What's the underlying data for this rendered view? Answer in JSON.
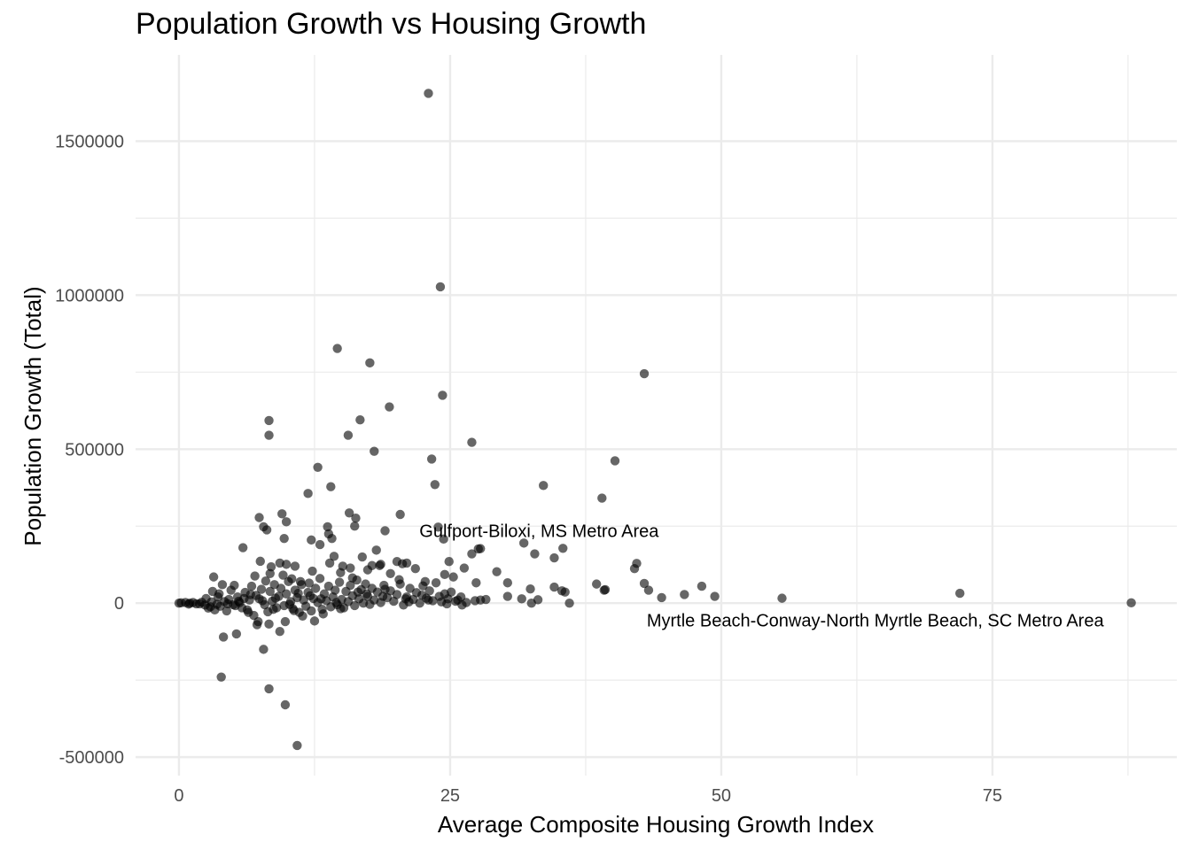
{
  "chart_data": {
    "type": "scatter",
    "title": "Population Growth vs Housing Growth",
    "xlabel": "Average Composite Housing Growth Index",
    "ylabel": "Population Growth (Total)",
    "xlim": [
      -4,
      92
    ],
    "ylim": [
      -560000,
      1780000
    ],
    "x_ticks": [
      0,
      25,
      50,
      75
    ],
    "x_tick_labels": [
      "0",
      "25",
      "50",
      "75"
    ],
    "x_minor_ticks": [
      12.5,
      37.5,
      62.5,
      87.5
    ],
    "y_ticks": [
      -500000,
      0,
      500000,
      1000000,
      1500000
    ],
    "y_tick_labels": [
      "-500000",
      "0",
      "500000",
      "1000000",
      "1500000"
    ],
    "y_minor_ticks": [
      -250000,
      250000,
      750000,
      1250000
    ],
    "grid": true,
    "point_color": "#000000",
    "point_opacity": 0.6,
    "grid_color": "#ebebeb",
    "annotations": [
      {
        "text": "Gulfport-Biloxi, MS Metro Area",
        "x": 33.2,
        "y": 230000
      },
      {
        "text": "Myrtle Beach-Conway-North Myrtle Beach, SC Metro Area",
        "x": 64.2,
        "y": -60000
      }
    ],
    "points": [
      [
        23.0,
        1655000
      ],
      [
        24.1,
        1027000
      ],
      [
        14.6,
        827000
      ],
      [
        17.6,
        780000
      ],
      [
        42.9,
        745000
      ],
      [
        24.3,
        675000
      ],
      [
        19.4,
        637000
      ],
      [
        8.3,
        593000
      ],
      [
        16.7,
        595000
      ],
      [
        8.3,
        545000
      ],
      [
        15.6,
        545000
      ],
      [
        27.0,
        522000
      ],
      [
        18.0,
        493000
      ],
      [
        40.2,
        462000
      ],
      [
        23.3,
        468000
      ],
      [
        12.8,
        441000
      ],
      [
        23.6,
        385000
      ],
      [
        33.6,
        382000
      ],
      [
        14.0,
        378000
      ],
      [
        11.9,
        356000
      ],
      [
        39.0,
        341000
      ],
      [
        15.7,
        293000
      ],
      [
        9.5,
        290000
      ],
      [
        20.4,
        288000
      ],
      [
        7.4,
        278000
      ],
      [
        16.3,
        276000
      ],
      [
        9.9,
        264000
      ],
      [
        7.8,
        248000
      ],
      [
        13.7,
        248000
      ],
      [
        16.2,
        250000
      ],
      [
        8.1,
        238000
      ],
      [
        19.0,
        235000
      ],
      [
        23.9,
        247000
      ],
      [
        13.8,
        225000
      ],
      [
        12.2,
        205000
      ],
      [
        9.7,
        210000
      ],
      [
        24.4,
        208000
      ],
      [
        14.1,
        210000
      ],
      [
        31.8,
        195000
      ],
      [
        13.0,
        190000
      ],
      [
        5.9,
        180000
      ],
      [
        18.2,
        172000
      ],
      [
        27.8,
        177000
      ],
      [
        35.4,
        178000
      ],
      [
        27.6,
        176000
      ],
      [
        32.8,
        160000
      ],
      [
        14.3,
        152000
      ],
      [
        27.0,
        160000
      ],
      [
        34.6,
        147000
      ],
      [
        16.9,
        150000
      ],
      [
        17.8,
        122000
      ],
      [
        18.6,
        126000
      ],
      [
        20.1,
        135000
      ],
      [
        21.0,
        130000
      ],
      [
        42.2,
        129000
      ],
      [
        7.5,
        136000
      ],
      [
        9.3,
        130000
      ],
      [
        9.9,
        126000
      ],
      [
        8.5,
        118000
      ],
      [
        10.7,
        120000
      ],
      [
        13.9,
        130000
      ],
      [
        15.1,
        120000
      ],
      [
        15.8,
        114000
      ],
      [
        18.5,
        122000
      ],
      [
        20.6,
        128000
      ],
      [
        21.8,
        112000
      ],
      [
        24.9,
        135000
      ],
      [
        26.3,
        114000
      ],
      [
        42.0,
        112000
      ],
      [
        12.3,
        104000
      ],
      [
        14.9,
        99000
      ],
      [
        17.4,
        108000
      ],
      [
        19.5,
        96000
      ],
      [
        25.3,
        85000
      ],
      [
        29.3,
        102000
      ],
      [
        24.5,
        93000
      ],
      [
        3.2,
        85000
      ],
      [
        7.0,
        88000
      ],
      [
        8.4,
        96000
      ],
      [
        9.6,
        91000
      ],
      [
        10.4,
        79000
      ],
      [
        11.2,
        70000
      ],
      [
        16.0,
        82000
      ],
      [
        20.3,
        76000
      ],
      [
        22.7,
        70000
      ],
      [
        27.4,
        66000
      ],
      [
        30.3,
        66000
      ],
      [
        38.5,
        62000
      ],
      [
        42.9,
        64000
      ],
      [
        48.2,
        55000
      ],
      [
        34.6,
        52000
      ],
      [
        32.4,
        46000
      ],
      [
        35.3,
        40000
      ],
      [
        39.3,
        44000
      ],
      [
        43.3,
        42000
      ],
      [
        39.2,
        42000
      ],
      [
        35.6,
        36000
      ],
      [
        46.6,
        28000
      ],
      [
        49.4,
        22000
      ],
      [
        44.5,
        18000
      ],
      [
        30.3,
        22000
      ],
      [
        31.6,
        14000
      ],
      [
        33.1,
        11000
      ],
      [
        28.3,
        12000
      ],
      [
        27.8,
        10000
      ],
      [
        25.7,
        10000
      ],
      [
        36.0,
        0
      ],
      [
        32.5,
        0
      ],
      [
        55.6,
        16000
      ],
      [
        72.0,
        32000
      ],
      [
        87.8,
        1000
      ],
      [
        0.0,
        0
      ],
      [
        0.2,
        1000
      ],
      [
        0.9,
        -3000
      ],
      [
        1.3,
        2000
      ],
      [
        1.6,
        -2000
      ],
      [
        2.1,
        3000
      ],
      [
        2.4,
        -6000
      ],
      [
        2.7,
        -16000
      ],
      [
        3.0,
        4000
      ],
      [
        3.1,
        38000
      ],
      [
        3.3,
        -22000
      ],
      [
        3.6,
        20000
      ],
      [
        3.8,
        -10000
      ],
      [
        4.0,
        60000
      ],
      [
        4.2,
        5000
      ],
      [
        4.4,
        -25000
      ],
      [
        4.6,
        12000
      ],
      [
        4.8,
        42000
      ],
      [
        5.1,
        58000
      ],
      [
        5.2,
        -8000
      ],
      [
        5.4,
        20000
      ],
      [
        5.6,
        2000
      ],
      [
        5.8,
        -15000
      ],
      [
        6.1,
        35000
      ],
      [
        6.3,
        -22000
      ],
      [
        6.5,
        10000
      ],
      [
        6.7,
        55000
      ],
      [
        6.9,
        -40000
      ],
      [
        7.1,
        25000
      ],
      [
        7.3,
        -60000
      ],
      [
        7.4,
        14000
      ],
      [
        7.6,
        45000
      ],
      [
        7.9,
        -5000
      ],
      [
        8.0,
        72000
      ],
      [
        8.2,
        -28000
      ],
      [
        8.4,
        38000
      ],
      [
        8.6,
        6000
      ],
      [
        8.8,
        60000
      ],
      [
        9.0,
        -15000
      ],
      [
        9.2,
        22000
      ],
      [
        9.4,
        48000
      ],
      [
        9.7,
        -8000
      ],
      [
        9.9,
        30000
      ],
      [
        10.1,
        70000
      ],
      [
        10.3,
        5000
      ],
      [
        10.5,
        -18000
      ],
      [
        10.7,
        42000
      ],
      [
        10.9,
        18000
      ],
      [
        11.1,
        -30000
      ],
      [
        11.3,
        60000
      ],
      [
        11.5,
        10000
      ],
      [
        11.7,
        -10000
      ],
      [
        11.9,
        35000
      ],
      [
        12.0,
        65000
      ],
      [
        12.2,
        -25000
      ],
      [
        12.4,
        15000
      ],
      [
        12.6,
        48000
      ],
      [
        12.8,
        2000
      ],
      [
        13.0,
        80000
      ],
      [
        13.2,
        -20000
      ],
      [
        13.4,
        30000
      ],
      [
        13.6,
        8000
      ],
      [
        13.8,
        55000
      ],
      [
        14.0,
        -12000
      ],
      [
        14.2,
        20000
      ],
      [
        14.4,
        42000
      ],
      [
        14.6,
        -5000
      ],
      [
        14.8,
        68000
      ],
      [
        15.0,
        12000
      ],
      [
        15.2,
        -15000
      ],
      [
        15.4,
        38000
      ],
      [
        15.6,
        5000
      ],
      [
        15.8,
        58000
      ],
      [
        16.0,
        24000
      ],
      [
        16.2,
        -8000
      ],
      [
        16.4,
        75000
      ],
      [
        16.6,
        14000
      ],
      [
        16.8,
        44000
      ],
      [
        17.0,
        0
      ],
      [
        17.2,
        62000
      ],
      [
        17.4,
        22000
      ],
      [
        17.6,
        -4000
      ],
      [
        17.8,
        48000
      ],
      [
        18.0,
        10000
      ],
      [
        18.3,
        36000
      ],
      [
        18.6,
        2000
      ],
      [
        18.9,
        58000
      ],
      [
        19.2,
        18000
      ],
      [
        19.5,
        40000
      ],
      [
        19.8,
        6000
      ],
      [
        20.1,
        28000
      ],
      [
        20.4,
        62000
      ],
      [
        20.7,
        -6000
      ],
      [
        21.0,
        20000
      ],
      [
        21.3,
        48000
      ],
      [
        21.6,
        12000
      ],
      [
        21.9,
        34000
      ],
      [
        22.2,
        0
      ],
      [
        22.5,
        56000
      ],
      [
        22.8,
        16000
      ],
      [
        23.1,
        40000
      ],
      [
        23.4,
        8000
      ],
      [
        23.7,
        66000
      ],
      [
        24.0,
        22000
      ],
      [
        24.2,
        4000
      ],
      [
        24.5,
        30000
      ],
      [
        24.8,
        14000
      ],
      [
        25.1,
        36000
      ],
      [
        25.5,
        6000
      ],
      [
        26.1,
        -6000
      ],
      [
        26.5,
        2000
      ],
      [
        27.3,
        8000
      ],
      [
        0.6,
        2000
      ],
      [
        1.0,
        0
      ],
      [
        1.9,
        -2000
      ],
      [
        2.9,
        -12000
      ],
      [
        3.5,
        -4000
      ],
      [
        4.5,
        -2000
      ],
      [
        5.5,
        6000
      ],
      [
        6.4,
        -30000
      ],
      [
        7.2,
        -70000
      ],
      [
        8.7,
        -20000
      ],
      [
        9.8,
        -60000
      ],
      [
        10.6,
        -24000
      ],
      [
        11.4,
        -42000
      ],
      [
        12.5,
        -58000
      ],
      [
        13.3,
        -35000
      ],
      [
        14.9,
        -18000
      ],
      [
        7.8,
        -150000
      ],
      [
        4.1,
        -110000
      ],
      [
        5.3,
        -100000
      ],
      [
        8.3,
        -68000
      ],
      [
        9.3,
        -92000
      ],
      [
        3.9,
        -240000
      ],
      [
        8.3,
        -278000
      ],
      [
        9.8,
        -330000
      ],
      [
        10.9,
        -462000
      ],
      [
        6.0,
        15000
      ],
      [
        11.0,
        32000
      ],
      [
        13.1,
        14000
      ],
      [
        17.3,
        30000
      ],
      [
        19.0,
        45000
      ],
      [
        21.2,
        4000
      ],
      [
        23.0,
        10000
      ],
      [
        2.5,
        15000
      ],
      [
        3.7,
        30000
      ],
      [
        5.0,
        -5000
      ],
      [
        6.6,
        28000
      ],
      [
        7.7,
        8000
      ],
      [
        8.9,
        16000
      ],
      [
        10.2,
        -4000
      ],
      [
        12.1,
        24000
      ],
      [
        14.5,
        2000
      ],
      [
        16.5,
        36000
      ],
      [
        18.8,
        22000
      ],
      [
        20.9,
        14000
      ],
      [
        22.4,
        26000
      ],
      [
        24.7,
        -2000
      ],
      [
        26.0,
        20000
      ]
    ]
  }
}
